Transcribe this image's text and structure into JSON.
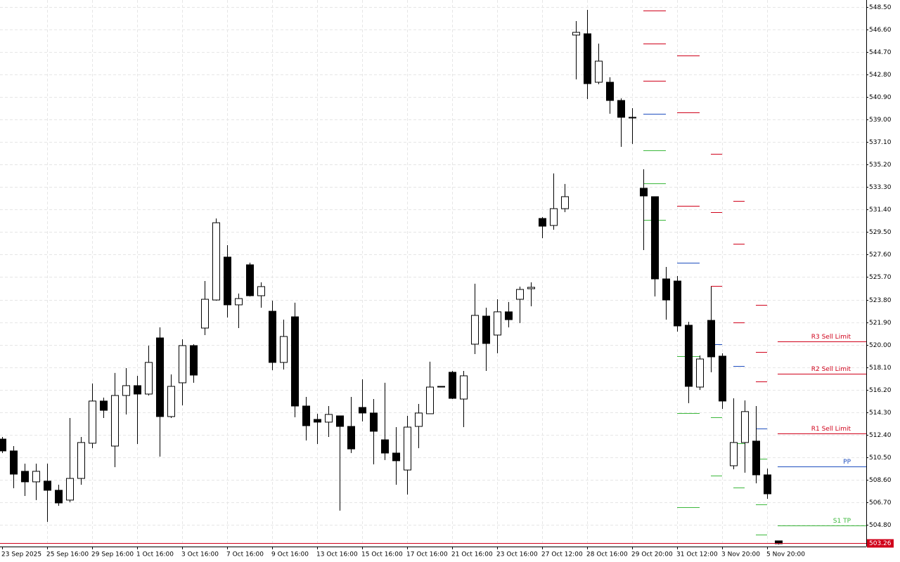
{
  "chart_data": {
    "type": "candlestick",
    "x": [
      "23 Sep 2025",
      null,
      null,
      null,
      "25 Sep 16:00",
      null,
      null,
      null,
      "29 Sep 16:00",
      null,
      null,
      null,
      "1 Oct 16:00",
      null,
      null,
      null,
      "3 Oct 16:00",
      null,
      null,
      null,
      "7 Oct 16:00",
      null,
      null,
      null,
      "9 Oct 16:00",
      null,
      null,
      null,
      "13 Oct 16:00",
      null,
      null,
      null,
      "15 Oct 16:00",
      null,
      null,
      null,
      "17 Oct 16:00",
      null,
      null,
      null,
      "21 Oct 16:00",
      null,
      null,
      null,
      "23 Oct 16:00",
      null,
      null,
      null,
      "27 Oct 12:00",
      null,
      null,
      null,
      "28 Oct 16:00",
      null,
      null,
      null,
      "29 Oct 20:00",
      null,
      null,
      null,
      "31 Oct 12:00",
      null,
      null,
      null,
      "3 Nov 20:00",
      null,
      null,
      null,
      "5 Nov 20:00",
      null
    ],
    "open": [
      512.03,
      511.03,
      509.31,
      508.42,
      508.48,
      507.71,
      506.88,
      508.71,
      511.68,
      515.24,
      511.44,
      515.71,
      516.54,
      515.83,
      520.57,
      513.93,
      516.78,
      519.92,
      521.4,
      523.77,
      527.39,
      523.36,
      526.74,
      524.13,
      522.82,
      518.5,
      522.35,
      514.82,
      513.69,
      513.46,
      513.99,
      513.1,
      514.7,
      514.23,
      511.97,
      510.85,
      509.42,
      513.1,
      514.17,
      516.42,
      517.67,
      515.41,
      520.04,
      522.41,
      520.81,
      522.77,
      523.83,
      524.72,
      530.65,
      530.06,
      531.48,
      546.13,
      546.24,
      542.15,
      542.15,
      540.61,
      539.19,
      533.2,
      532.49,
      525.55,
      525.37,
      521.64,
      516.42,
      522.05,
      519.03,
      509.78,
      511.74,
      511.86,
      509.01,
      503.44
    ],
    "high": [
      512.21,
      511.44,
      509.96,
      509.96,
      509.96,
      508.18,
      513.81,
      512.21,
      516.72,
      515.53,
      517.61,
      518.02,
      517.37,
      519.92,
      521.46,
      517.49,
      520.45,
      520.04,
      525.37,
      530.65,
      528.4,
      524.31,
      526.92,
      525.26,
      523.71,
      522.11,
      523.54,
      515.59,
      514.17,
      514.82,
      513.99,
      515.59,
      517.07,
      515.41,
      516.78,
      513.04,
      513.99,
      515.0,
      518.56,
      516.48,
      517.78,
      517.78,
      525.14,
      523.12,
      523.83,
      523.6,
      524.9,
      525.26,
      530.77,
      534.45,
      533.56,
      547.31,
      548.26,
      545.41,
      542.57,
      540.79,
      539.96,
      534.8,
      532.49,
      526.56,
      525.79,
      521.93,
      519.09,
      524.9,
      519.27,
      515.47,
      515.29,
      514.82,
      509.54,
      503.44
    ],
    "low": [
      510.85,
      507.88,
      507.23,
      506.88,
      505.04,
      506.4,
      506.7,
      508.18,
      511.26,
      513.81,
      509.66,
      514.11,
      511.62,
      515.71,
      510.55,
      513.81,
      514.88,
      516.78,
      520.81,
      523.71,
      522.29,
      521.4,
      524.07,
      523.12,
      517.84,
      517.9,
      513.87,
      511.91,
      511.62,
      512.21,
      505.99,
      510.85,
      513.52,
      509.9,
      510.26,
      508.18,
      507.35,
      511.26,
      514.17,
      516.42,
      515.41,
      513.04,
      519.21,
      517.78,
      519.27,
      521.46,
      521.82,
      523.24,
      528.99,
      529.7,
      531.18,
      542.39,
      540.73,
      541.98,
      539.49,
      536.7,
      536.94,
      527.98,
      524.07,
      522.11,
      521.1,
      515.06,
      516.18,
      517.67,
      514.58,
      509.48,
      509.19,
      508.3,
      506.99,
      503.14
    ],
    "close": [
      511.03,
      509.07,
      508.42,
      509.31,
      507.71,
      506.64,
      508.71,
      511.74,
      515.24,
      514.46,
      515.71,
      516.54,
      515.83,
      518.5,
      513.93,
      516.48,
      519.92,
      517.43,
      523.83,
      530.29,
      523.36,
      523.89,
      524.13,
      524.9,
      518.5,
      520.69,
      514.82,
      513.16,
      513.46,
      514.11,
      513.1,
      511.2,
      514.23,
      512.69,
      510.85,
      510.2,
      513.04,
      514.23,
      516.42,
      516.48,
      515.47,
      517.37,
      522.47,
      520.1,
      522.77,
      522.11,
      524.66,
      524.84,
      530.0,
      531.48,
      532.49,
      546.36,
      542.03,
      543.93,
      540.61,
      539.19,
      539.13,
      532.55,
      525.55,
      523.77,
      521.58,
      516.48,
      518.79,
      518.97,
      515.24,
      511.74,
      514.35,
      509.01,
      507.41,
      503.2
    ],
    "up_color": "#ffffff",
    "down_color": "#000000",
    "pivot_series": [
      {
        "color": "#d0021b",
        "values": [
          null,
          null,
          null,
          null,
          null,
          null,
          null,
          null,
          null,
          null,
          null,
          null,
          null,
          null,
          null,
          null,
          null,
          null,
          null,
          null,
          null,
          null,
          null,
          null,
          null,
          null,
          null,
          null,
          null,
          null,
          null,
          null,
          null,
          null,
          null,
          null,
          null,
          null,
          null,
          null,
          null,
          null,
          null,
          null,
          null,
          null,
          null,
          null,
          null,
          null,
          null,
          null,
          null,
          null,
          null,
          null,
          null,
          548.2,
          548.2,
          548.2,
          544.41,
          544.41,
          544.41,
          536.11,
          536.11,
          532.13,
          532.13,
          523.36,
          523.36,
          null
        ]
      },
      {
        "color": "#d0021b",
        "values": [
          null,
          null,
          null,
          null,
          null,
          null,
          null,
          null,
          null,
          null,
          null,
          null,
          null,
          null,
          null,
          null,
          null,
          null,
          null,
          null,
          null,
          null,
          null,
          null,
          null,
          null,
          null,
          null,
          null,
          null,
          null,
          null,
          null,
          null,
          null,
          null,
          null,
          null,
          null,
          null,
          null,
          null,
          null,
          null,
          null,
          null,
          null,
          null,
          null,
          null,
          null,
          null,
          null,
          null,
          null,
          null,
          null,
          545.41,
          545.41,
          545.41,
          539.6,
          539.6,
          539.6,
          531.18,
          531.18,
          528.52,
          528.52,
          519.39,
          519.39,
          null
        ]
      },
      {
        "color": "#d0021b",
        "values": [
          null,
          null,
          null,
          null,
          null,
          null,
          null,
          null,
          null,
          null,
          null,
          null,
          null,
          null,
          null,
          null,
          null,
          null,
          null,
          null,
          null,
          null,
          null,
          null,
          null,
          null,
          null,
          null,
          null,
          null,
          null,
          null,
          null,
          null,
          null,
          null,
          null,
          null,
          null,
          null,
          null,
          null,
          null,
          null,
          null,
          null,
          null,
          null,
          null,
          null,
          null,
          null,
          null,
          null,
          null,
          null,
          null,
          542.27,
          542.27,
          542.27,
          531.72,
          531.72,
          531.72,
          524.96,
          524.96,
          521.88,
          521.88,
          516.9,
          516.9,
          null
        ]
      },
      {
        "color": "#1f4fbf",
        "values": [
          null,
          null,
          null,
          null,
          null,
          null,
          null,
          null,
          null,
          null,
          null,
          null,
          null,
          null,
          null,
          null,
          null,
          null,
          null,
          null,
          null,
          null,
          null,
          null,
          null,
          null,
          null,
          null,
          null,
          null,
          null,
          null,
          null,
          null,
          null,
          null,
          null,
          null,
          null,
          null,
          null,
          null,
          null,
          null,
          null,
          null,
          null,
          null,
          null,
          null,
          null,
          null,
          null,
          null,
          null,
          null,
          null,
          539.49,
          539.49,
          539.49,
          526.92,
          526.92,
          526.92,
          520.04,
          520.04,
          518.2,
          518.2,
          512.92,
          512.92,
          null
        ]
      },
      {
        "color": "#3cb83c",
        "values": [
          null,
          null,
          null,
          null,
          null,
          null,
          null,
          null,
          null,
          null,
          null,
          null,
          null,
          null,
          null,
          null,
          null,
          null,
          null,
          null,
          null,
          null,
          null,
          null,
          null,
          null,
          null,
          null,
          null,
          null,
          null,
          null,
          null,
          null,
          null,
          null,
          null,
          null,
          null,
          null,
          null,
          null,
          null,
          null,
          null,
          null,
          null,
          null,
          null,
          null,
          null,
          null,
          null,
          null,
          null,
          null,
          null,
          536.4,
          536.4,
          536.4,
          519.03,
          519.03,
          519.03,
          513.87,
          513.87,
          511.68,
          511.68,
          510.37,
          510.37,
          null
        ]
      },
      {
        "color": "#3cb83c",
        "values": [
          null,
          null,
          null,
          null,
          null,
          null,
          null,
          null,
          null,
          null,
          null,
          null,
          null,
          null,
          null,
          null,
          null,
          null,
          null,
          null,
          null,
          null,
          null,
          null,
          null,
          null,
          null,
          null,
          null,
          null,
          null,
          null,
          null,
          null,
          null,
          null,
          null,
          null,
          null,
          null,
          null,
          null,
          null,
          null,
          null,
          null,
          null,
          null,
          null,
          null,
          null,
          null,
          null,
          null,
          null,
          null,
          null,
          533.62,
          533.62,
          533.62,
          514.23,
          514.23,
          514.23,
          508.95,
          508.95,
          507.94,
          507.94,
          506.52,
          506.52,
          null
        ]
      },
      {
        "color": "#3cb83c",
        "values": [
          null,
          null,
          null,
          null,
          null,
          null,
          null,
          null,
          null,
          null,
          null,
          null,
          null,
          null,
          null,
          null,
          null,
          null,
          null,
          null,
          null,
          null,
          null,
          null,
          null,
          null,
          null,
          null,
          null,
          null,
          null,
          null,
          null,
          null,
          null,
          null,
          null,
          null,
          null,
          null,
          null,
          null,
          null,
          null,
          null,
          null,
          null,
          null,
          null,
          null,
          null,
          null,
          null,
          null,
          null,
          null,
          null,
          530.53,
          530.53,
          530.53,
          506.28,
          506.28,
          506.28,
          null,
          null,
          null,
          null,
          503.97,
          503.97,
          null
        ]
      }
    ],
    "levels": [
      {
        "label": "R3 Sell Limit",
        "value": 520.27,
        "color": "#d0021b"
      },
      {
        "label": "R2 Sell Limit",
        "value": 517.55,
        "color": "#d0021b"
      },
      {
        "label": "R1 Sell Limit",
        "value": 512.51,
        "color": "#d0021b"
      },
      {
        "label": "PP",
        "value": 509.72,
        "color": "#1f4fbf"
      },
      {
        "label": "S1 TP",
        "value": 504.74,
        "color": "#3cb83c"
      }
    ],
    "current_price": 503.26,
    "current_color": "#d0021b",
    "ylim": [
      502.96,
      549.09
    ],
    "yticks": [
      {
        "value": 548.5,
        "label": "548.50"
      },
      {
        "value": 546.6,
        "label": "546.60"
      },
      {
        "value": 544.7,
        "label": "544.70"
      },
      {
        "value": 542.8,
        "label": "542.80"
      },
      {
        "value": 540.9,
        "label": "540.90"
      },
      {
        "value": 539,
        "label": "539.00"
      },
      {
        "value": 537.1,
        "label": "537.10"
      },
      {
        "value": 535.2,
        "label": "535.20"
      },
      {
        "value": 533.3,
        "label": "533.30"
      },
      {
        "value": 531.4,
        "label": "531.40"
      },
      {
        "value": 529.5,
        "label": "529.50"
      },
      {
        "value": 527.6,
        "label": "527.60"
      },
      {
        "value": 525.7,
        "label": "525.70"
      },
      {
        "value": 523.8,
        "label": "523.80"
      },
      {
        "value": 521.9,
        "label": "521.90"
      },
      {
        "value": 520,
        "label": "520.00"
      },
      {
        "value": 518.1,
        "label": "518.10"
      },
      {
        "value": 516.2,
        "label": "516.20"
      },
      {
        "value": 514.3,
        "label": "514.30"
      },
      {
        "value": 512.4,
        "label": "512.40"
      },
      {
        "value": 510.5,
        "label": "510.50"
      },
      {
        "value": 508.6,
        "label": "508.60"
      },
      {
        "value": 506.7,
        "label": "506.70"
      },
      {
        "value": 504.8,
        "label": "504.80"
      }
    ],
    "grid": true
  }
}
